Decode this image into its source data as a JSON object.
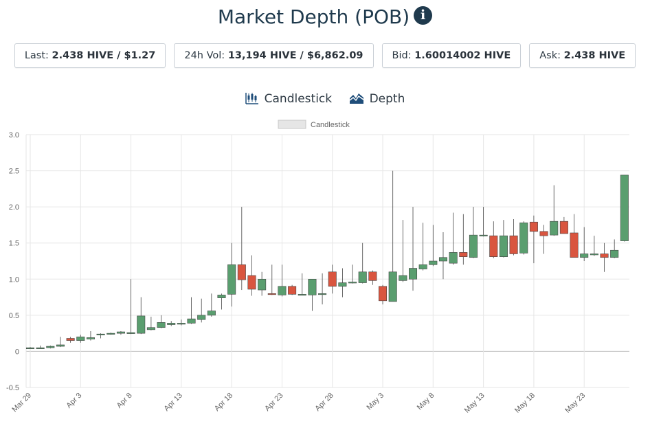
{
  "header": {
    "title": "Market Depth (POB)",
    "info_icon": "info-icon"
  },
  "stats": [
    {
      "label": "Last:",
      "value": "2.438 HIVE / $1.27"
    },
    {
      "label": "24h Vol:",
      "value": "13,194 HIVE / $6,862.09"
    },
    {
      "label": "Bid:",
      "value": "1.60014002 HIVE"
    },
    {
      "label": "Ask:",
      "value": "2.438 HIVE"
    }
  ],
  "tabs": [
    {
      "label": "Candlestick",
      "icon": "candlestick-icon"
    },
    {
      "label": "Depth",
      "icon": "depth-chart-icon"
    }
  ],
  "colors": {
    "up": "#5a9e6f",
    "down": "#d9553f",
    "wick": "#444444",
    "grid": "#e6e6e6",
    "title": "#1f3a4d"
  },
  "chart_data": {
    "type": "candlestick",
    "legend": "Candlestick",
    "legend_position": "top-center",
    "grid": true,
    "ylim": [
      -0.5,
      3.0
    ],
    "y_ticks": [
      "3.0",
      "2.5",
      "2.0",
      "1.5",
      "1.0",
      "0.5",
      "0",
      "-0.5"
    ],
    "x_tick_labels": [
      "Mar 29",
      "Apr 3",
      "Apr 8",
      "Apr 13",
      "Apr 18",
      "Apr 23",
      "Apr 28",
      "May 3",
      "May 8",
      "May 13",
      "May 18",
      "May 23"
    ],
    "candles": [
      {
        "d": "Mar 29",
        "o": 0.05,
        "h": 0.06,
        "l": 0.05,
        "c": 0.05
      },
      {
        "d": "Mar 30",
        "o": 0.05,
        "h": 0.08,
        "l": 0.04,
        "c": 0.05
      },
      {
        "d": "Mar 31",
        "o": 0.05,
        "h": 0.08,
        "l": 0.04,
        "c": 0.07
      },
      {
        "d": "Apr 1",
        "o": 0.07,
        "h": 0.2,
        "l": 0.06,
        "c": 0.09
      },
      {
        "d": "Apr 2",
        "o": 0.18,
        "h": 0.2,
        "l": 0.12,
        "c": 0.15
      },
      {
        "d": "Apr 3",
        "o": 0.15,
        "h": 0.23,
        "l": 0.12,
        "c": 0.2
      },
      {
        "d": "Apr 4",
        "o": 0.17,
        "h": 0.28,
        "l": 0.15,
        "c": 0.19
      },
      {
        "d": "Apr 5",
        "o": 0.24,
        "h": 0.25,
        "l": 0.18,
        "c": 0.24
      },
      {
        "d": "Apr 6",
        "o": 0.24,
        "h": 0.26,
        "l": 0.23,
        "c": 0.25
      },
      {
        "d": "Apr 7",
        "o": 0.25,
        "h": 0.28,
        "l": 0.23,
        "c": 0.27
      },
      {
        "d": "Apr 8",
        "o": 0.25,
        "h": 1.0,
        "l": 0.24,
        "c": 0.26
      },
      {
        "d": "Apr 9",
        "o": 0.25,
        "h": 0.75,
        "l": 0.24,
        "c": 0.49
      },
      {
        "d": "Apr 10",
        "o": 0.3,
        "h": 0.48,
        "l": 0.29,
        "c": 0.33
      },
      {
        "d": "Apr 11",
        "o": 0.33,
        "h": 0.5,
        "l": 0.32,
        "c": 0.4
      },
      {
        "d": "Apr 12",
        "o": 0.37,
        "h": 0.42,
        "l": 0.35,
        "c": 0.39
      },
      {
        "d": "Apr 13",
        "o": 0.38,
        "h": 0.44,
        "l": 0.36,
        "c": 0.39
      },
      {
        "d": "Apr 14",
        "o": 0.39,
        "h": 0.75,
        "l": 0.38,
        "c": 0.45
      },
      {
        "d": "Apr 15",
        "o": 0.44,
        "h": 0.73,
        "l": 0.4,
        "c": 0.5
      },
      {
        "d": "Apr 16",
        "o": 0.5,
        "h": 0.8,
        "l": 0.48,
        "c": 0.56
      },
      {
        "d": "Apr 17",
        "o": 0.74,
        "h": 0.8,
        "l": 0.58,
        "c": 0.78
      },
      {
        "d": "Apr 18",
        "o": 0.79,
        "h": 1.5,
        "l": 0.62,
        "c": 1.2
      },
      {
        "d": "Apr 19",
        "o": 1.2,
        "h": 2.0,
        "l": 0.85,
        "c": 0.99
      },
      {
        "d": "Apr 20",
        "o": 1.05,
        "h": 1.33,
        "l": 0.77,
        "c": 0.86
      },
      {
        "d": "Apr 21",
        "o": 0.85,
        "h": 1.1,
        "l": 0.77,
        "c": 1.0
      },
      {
        "d": "Apr 22",
        "o": 0.8,
        "h": 1.2,
        "l": 0.78,
        "c": 0.79
      },
      {
        "d": "Apr 23",
        "o": 0.78,
        "h": 1.2,
        "l": 0.76,
        "c": 0.9
      },
      {
        "d": "Apr 24",
        "o": 0.9,
        "h": 0.92,
        "l": 0.78,
        "c": 0.79
      },
      {
        "d": "Apr 25",
        "o": 0.79,
        "h": 1.08,
        "l": 0.78,
        "c": 0.79
      },
      {
        "d": "Apr 26",
        "o": 0.78,
        "h": 1.0,
        "l": 0.56,
        "c": 1.0
      },
      {
        "d": "Apr 27",
        "o": 0.79,
        "h": 1.08,
        "l": 0.65,
        "c": 0.8
      },
      {
        "d": "Apr 28",
        "o": 1.1,
        "h": 1.2,
        "l": 0.8,
        "c": 0.9
      },
      {
        "d": "Apr 29",
        "o": 0.9,
        "h": 1.15,
        "l": 0.75,
        "c": 0.95
      },
      {
        "d": "Apr 30",
        "o": 0.95,
        "h": 1.2,
        "l": 0.94,
        "c": 0.96
      },
      {
        "d": "May 1",
        "o": 0.95,
        "h": 1.5,
        "l": 0.94,
        "c": 1.1
      },
      {
        "d": "May 2",
        "o": 1.1,
        "h": 1.12,
        "l": 0.92,
        "c": 0.98
      },
      {
        "d": "May 3",
        "o": 0.9,
        "h": 0.92,
        "l": 0.65,
        "c": 0.7
      },
      {
        "d": "May 4",
        "o": 0.69,
        "h": 2.5,
        "l": 0.69,
        "c": 1.1
      },
      {
        "d": "May 5",
        "o": 0.98,
        "h": 1.82,
        "l": 0.96,
        "c": 1.05
      },
      {
        "d": "May 6",
        "o": 1.0,
        "h": 2.0,
        "l": 0.84,
        "c": 1.15
      },
      {
        "d": "May 7",
        "o": 1.14,
        "h": 1.78,
        "l": 1.12,
        "c": 1.2
      },
      {
        "d": "May 8",
        "o": 1.2,
        "h": 1.75,
        "l": 1.18,
        "c": 1.25
      },
      {
        "d": "May 9",
        "o": 1.25,
        "h": 1.65,
        "l": 1.0,
        "c": 1.3
      },
      {
        "d": "May 10",
        "o": 1.22,
        "h": 1.92,
        "l": 1.2,
        "c": 1.37
      },
      {
        "d": "May 11",
        "o": 1.37,
        "h": 1.9,
        "l": 1.2,
        "c": 1.31
      },
      {
        "d": "May 12",
        "o": 1.3,
        "h": 2.0,
        "l": 1.29,
        "c": 1.61
      },
      {
        "d": "May 13",
        "o": 1.6,
        "h": 2.0,
        "l": 1.59,
        "c": 1.61
      },
      {
        "d": "May 14",
        "o": 1.6,
        "h": 1.8,
        "l": 1.29,
        "c": 1.31
      },
      {
        "d": "May 15",
        "o": 1.31,
        "h": 1.82,
        "l": 1.3,
        "c": 1.6
      },
      {
        "d": "May 16",
        "o": 1.6,
        "h": 1.83,
        "l": 1.33,
        "c": 1.35
      },
      {
        "d": "May 17",
        "o": 1.36,
        "h": 1.8,
        "l": 1.34,
        "c": 1.78
      },
      {
        "d": "May 18",
        "o": 1.79,
        "h": 1.88,
        "l": 1.22,
        "c": 1.66
      },
      {
        "d": "May 19",
        "o": 1.66,
        "h": 1.75,
        "l": 1.35,
        "c": 1.6
      },
      {
        "d": "May 20",
        "o": 1.61,
        "h": 2.3,
        "l": 1.6,
        "c": 1.8
      },
      {
        "d": "May 21",
        "o": 1.8,
        "h": 1.86,
        "l": 1.63,
        "c": 1.63
      },
      {
        "d": "May 22",
        "o": 1.64,
        "h": 1.9,
        "l": 1.3,
        "c": 1.3
      },
      {
        "d": "May 23",
        "o": 1.3,
        "h": 1.72,
        "l": 1.25,
        "c": 1.35
      },
      {
        "d": "May 24",
        "o": 1.34,
        "h": 1.6,
        "l": 1.32,
        "c": 1.35
      },
      {
        "d": "May 25",
        "o": 1.35,
        "h": 1.5,
        "l": 1.1,
        "c": 1.3
      },
      {
        "d": "May 26",
        "o": 1.3,
        "h": 1.55,
        "l": 1.29,
        "c": 1.4
      },
      {
        "d": "May 27",
        "o": 1.53,
        "h": 2.44,
        "l": 1.52,
        "c": 2.44
      }
    ]
  }
}
